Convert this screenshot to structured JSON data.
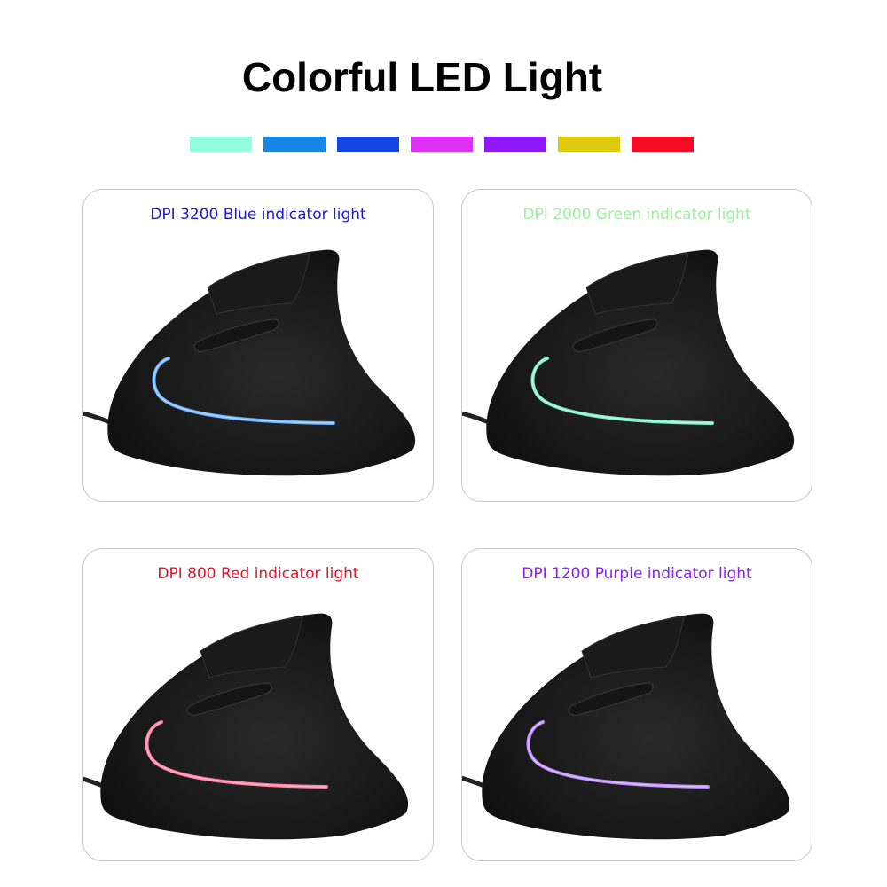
{
  "title": "Colorful LED Light",
  "swatches": [
    "#94fde0",
    "#1787e6",
    "#1346e2",
    "#df32f7",
    "#8f19fb",
    "#decb0e",
    "#f60c22"
  ],
  "cards": [
    {
      "label": "DPI 3200 Blue indicator light",
      "label_color": "#1a1ad6",
      "led_color": "#6fb4ff"
    },
    {
      "label": "DPI 2000 Green indicator light",
      "label_color": "#9af39a",
      "led_color": "#7ef0c8"
    },
    {
      "label": "DPI 800 Red indicator light",
      "label_color": "#e8102a",
      "led_color": "#ff7fa0"
    },
    {
      "label": "DPI 1200 Purple indicator light",
      "label_color": "#8a1ef0",
      "led_color": "#c08cff"
    }
  ]
}
